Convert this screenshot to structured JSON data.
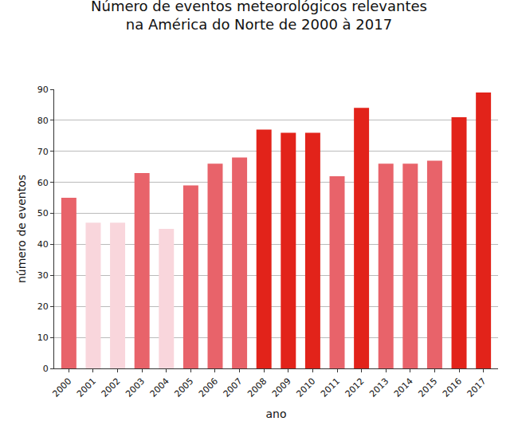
{
  "chart_data": {
    "type": "bar",
    "title": "Número de eventos meteorológicos relevantes na América do Norte de 2000 à 2017",
    "x_label": "ano",
    "y_label": "número de eventos",
    "categories": [
      "2000",
      "2001",
      "2002",
      "2003",
      "2004",
      "2005",
      "2006",
      "2007",
      "2008",
      "2009",
      "2010",
      "2011",
      "2012",
      "2013",
      "2014",
      "2015",
      "2016",
      "2017"
    ],
    "values": [
      55,
      47,
      47,
      63,
      45,
      59,
      66,
      68,
      77,
      76,
      76,
      62,
      84,
      66,
      66,
      67,
      81,
      89
    ],
    "colors": [
      "#e8636a",
      "#f9d6dc",
      "#f9d6dc",
      "#e8636a",
      "#f9d6dc",
      "#e8636a",
      "#e8636a",
      "#e8636a",
      "#e2231a",
      "#e2231a",
      "#e2231a",
      "#e8636a",
      "#e2231a",
      "#e8636a",
      "#e8636a",
      "#e8636a",
      "#e2231a",
      "#e2231a"
    ],
    "ylim": [
      0,
      90
    ],
    "yticks": [
      0,
      10,
      20,
      30,
      40,
      50,
      60,
      70,
      80,
      90
    ],
    "grid": true
  }
}
